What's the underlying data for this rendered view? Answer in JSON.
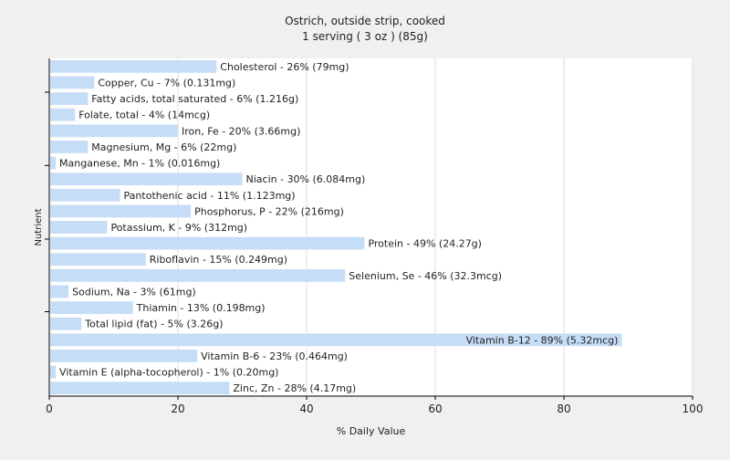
{
  "chart_data": {
    "type": "bar",
    "orientation": "horizontal",
    "title": "Ostrich, outside strip, cooked",
    "subtitle": "1 serving ( 3 oz ) (85g)",
    "xlabel": "% Daily Value",
    "ylabel": "Nutrient",
    "xlim": [
      0,
      100
    ],
    "xticks": [
      0,
      20,
      40,
      60,
      80,
      100
    ],
    "grid": true,
    "bar_color": "#c6ddf7",
    "background_color": "#f0f0f0",
    "plot_background_color": "#ffffff",
    "categories": [
      "Cholesterol",
      "Copper, Cu",
      "Fatty acids, total saturated",
      "Folate, total",
      "Iron, Fe",
      "Magnesium, Mg",
      "Manganese, Mn",
      "Niacin",
      "Pantothenic acid",
      "Phosphorus, P",
      "Potassium, K",
      "Protein",
      "Riboflavin",
      "Selenium, Se",
      "Sodium, Na",
      "Thiamin",
      "Total lipid (fat)",
      "Vitamin B-12",
      "Vitamin B-6",
      "Vitamin E (alpha-tocopherol)",
      "Zinc, Zn"
    ],
    "values": [
      26,
      7,
      6,
      4,
      20,
      6,
      1,
      30,
      11,
      22,
      9,
      49,
      15,
      46,
      3,
      13,
      5,
      89,
      23,
      1,
      28
    ],
    "labels": [
      "Cholesterol - 26% (79mg)",
      "Copper, Cu - 7% (0.131mg)",
      "Fatty acids, total saturated - 6% (1.216g)",
      "Folate, total - 4% (14mcg)",
      "Iron, Fe - 20% (3.66mg)",
      "Magnesium, Mg - 6% (22mg)",
      "Manganese, Mn - 1% (0.016mg)",
      "Niacin - 30% (6.084mg)",
      "Pantothenic acid - 11% (1.123mg)",
      "Phosphorus, P - 22% (216mg)",
      "Potassium, K - 9% (312mg)",
      "Protein - 49% (24.27g)",
      "Riboflavin - 15% (0.249mg)",
      "Selenium, Se - 46% (32.3mcg)",
      "Sodium, Na - 3% (61mg)",
      "Thiamin - 13% (0.198mg)",
      "Total lipid (fat) - 5% (3.26g)",
      "Vitamin B-12 - 89% (5.32mcg)",
      "Vitamin B-6 - 23% (0.464mg)",
      "Vitamin E (alpha-tocopherol) - 1% (0.20mg)",
      "Zinc, Zn - 28% (4.17mg)"
    ]
  }
}
